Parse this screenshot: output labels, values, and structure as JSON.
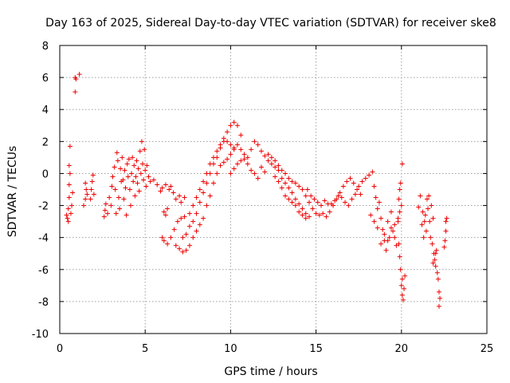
{
  "chart_data": {
    "type": "scatter",
    "title": "Day 163 of 2025, Sidereal Day-to-day VTEC variation (SDTVAR) for receiver ske8",
    "xlabel": "GPS time / hours",
    "ylabel": "SDTVAR / TECUs",
    "xlim": [
      0,
      25
    ],
    "ylim": [
      -10,
      8
    ],
    "xticks": [
      "0",
      "5",
      "10",
      "15",
      "20",
      "25"
    ],
    "yticks": [
      "-10",
      "-8",
      "-6",
      "-4",
      "-2",
      "0",
      "2",
      "4",
      "6",
      "8"
    ],
    "grid": true,
    "marker": "+",
    "color": "#ee0000",
    "series": [
      {
        "name": "SDTVAR",
        "points": [
          [
            0.4,
            -2.6
          ],
          [
            0.45,
            -2.8
          ],
          [
            0.5,
            -3.0
          ],
          [
            0.5,
            -2.2
          ],
          [
            0.55,
            -1.5
          ],
          [
            0.55,
            -0.7
          ],
          [
            0.6,
            0.0
          ],
          [
            0.55,
            0.5
          ],
          [
            0.6,
            1.7
          ],
          [
            0.65,
            -2.5
          ],
          [
            0.7,
            -2.0
          ],
          [
            0.75,
            -1.2
          ],
          [
            0.9,
            6.0
          ],
          [
            0.95,
            5.9
          ],
          [
            0.9,
            5.1
          ],
          [
            1.15,
            6.2
          ],
          [
            1.4,
            -2.0
          ],
          [
            1.5,
            -1.6
          ],
          [
            1.55,
            -1.0
          ],
          [
            1.5,
            -0.6
          ],
          [
            1.6,
            -1.3
          ],
          [
            1.8,
            -1.6
          ],
          [
            1.85,
            -1.0
          ],
          [
            1.9,
            -0.5
          ],
          [
            1.95,
            -0.1
          ],
          [
            2.0,
            -1.3
          ],
          [
            2.6,
            -2.7
          ],
          [
            2.65,
            -2.3
          ],
          [
            2.7,
            -1.9
          ],
          [
            2.8,
            -2.5
          ],
          [
            2.9,
            -1.5
          ],
          [
            3.0,
            -2.0
          ],
          [
            3.05,
            -0.8
          ],
          [
            3.1,
            -0.2
          ],
          [
            3.2,
            0.4
          ],
          [
            3.25,
            -1.0
          ],
          [
            3.3,
            -2.5
          ],
          [
            3.35,
            1.3
          ],
          [
            3.4,
            0.8
          ],
          [
            3.45,
            -1.5
          ],
          [
            3.5,
            -2.2
          ],
          [
            3.55,
            0.3
          ],
          [
            3.6,
            -0.5
          ],
          [
            3.65,
            1.0
          ],
          [
            3.7,
            -0.4
          ],
          [
            3.75,
            -1.6
          ],
          [
            3.8,
            0.2
          ],
          [
            3.85,
            -0.9
          ],
          [
            3.9,
            -2.6
          ],
          [
            3.95,
            0.6
          ],
          [
            4.0,
            -0.2
          ],
          [
            4.05,
            0.9
          ],
          [
            4.1,
            -1.0
          ],
          [
            4.15,
            -2.0
          ],
          [
            4.2,
            0.0
          ],
          [
            4.25,
            1.0
          ],
          [
            4.3,
            -0.5
          ],
          [
            4.35,
            0.5
          ],
          [
            4.4,
            -1.4
          ],
          [
            4.45,
            -0.2
          ],
          [
            4.5,
            0.8
          ],
          [
            4.55,
            -0.6
          ],
          [
            4.6,
            0.3
          ],
          [
            4.65,
            -1.1
          ],
          [
            4.7,
            1.4
          ],
          [
            4.75,
            0.0
          ],
          [
            4.8,
            2.0
          ],
          [
            4.85,
            0.6
          ],
          [
            4.9,
            -0.4
          ],
          [
            4.95,
            1.5
          ],
          [
            5.0,
            0.2
          ],
          [
            5.05,
            -0.8
          ],
          [
            5.1,
            0.5
          ],
          [
            5.2,
            -0.2
          ],
          [
            5.3,
            -0.5
          ],
          [
            5.5,
            -0.4
          ],
          [
            5.7,
            -0.7
          ],
          [
            5.9,
            -1.1
          ],
          [
            6.0,
            -0.9
          ],
          [
            6.2,
            -0.7
          ],
          [
            6.4,
            -1.0
          ],
          [
            6.5,
            -0.8
          ],
          [
            6.65,
            -1.2
          ],
          [
            6.8,
            -1.6
          ],
          [
            7.0,
            -1.4
          ],
          [
            7.1,
            -1.8
          ],
          [
            7.3,
            -1.5
          ],
          [
            6.1,
            -2.4
          ],
          [
            6.2,
            -2.6
          ],
          [
            6.3,
            -2.2
          ],
          [
            6.0,
            -4.0
          ],
          [
            6.1,
            -4.2
          ],
          [
            6.3,
            -4.4
          ],
          [
            6.5,
            -4.0
          ],
          [
            6.7,
            -3.5
          ],
          [
            6.9,
            -3.0
          ],
          [
            7.1,
            -2.8
          ],
          [
            7.3,
            -2.7
          ],
          [
            6.8,
            -4.5
          ],
          [
            7.0,
            -4.7
          ],
          [
            7.2,
            -4.9
          ],
          [
            7.4,
            -4.8
          ],
          [
            7.6,
            -4.5
          ],
          [
            7.8,
            -4.0
          ],
          [
            8.0,
            -3.6
          ],
          [
            8.2,
            -3.2
          ],
          [
            8.4,
            -2.8
          ],
          [
            8.6,
            -2.0
          ],
          [
            8.8,
            -1.4
          ],
          [
            9.0,
            -0.6
          ],
          [
            9.2,
            0.0
          ],
          [
            9.4,
            0.5
          ],
          [
            9.6,
            0.7
          ],
          [
            9.8,
            0.9
          ],
          [
            10.0,
            1.2
          ],
          [
            10.2,
            1.5
          ],
          [
            7.2,
            -4.0
          ],
          [
            7.4,
            -3.8
          ],
          [
            7.6,
            -3.3
          ],
          [
            7.8,
            -3.0
          ],
          [
            8.0,
            -2.5
          ],
          [
            8.2,
            -1.8
          ],
          [
            8.4,
            -1.2
          ],
          [
            8.6,
            -0.6
          ],
          [
            8.8,
            0.0
          ],
          [
            9.0,
            0.6
          ],
          [
            9.2,
            1.0
          ],
          [
            9.4,
            1.6
          ],
          [
            9.6,
            2.2
          ],
          [
            9.8,
            2.6
          ],
          [
            10.0,
            3.0
          ],
          [
            10.2,
            3.2
          ],
          [
            10.4,
            3.0
          ],
          [
            10.6,
            2.4
          ],
          [
            7.6,
            -2.5
          ],
          [
            7.8,
            -2.0
          ],
          [
            8.0,
            -1.5
          ],
          [
            8.2,
            -1.0
          ],
          [
            8.4,
            -0.5
          ],
          [
            8.6,
            0.0
          ],
          [
            8.8,
            0.6
          ],
          [
            9.0,
            1.0
          ],
          [
            9.2,
            1.4
          ],
          [
            9.4,
            1.8
          ],
          [
            9.6,
            2.0
          ],
          [
            9.8,
            2.0
          ],
          [
            10.0,
            1.8
          ],
          [
            10.2,
            1.6
          ],
          [
            10.4,
            1.8
          ],
          [
            10.6,
            1.5
          ],
          [
            10.8,
            1.2
          ],
          [
            11.0,
            0.6
          ],
          [
            10.0,
            0.0
          ],
          [
            10.2,
            0.3
          ],
          [
            10.4,
            0.6
          ],
          [
            10.6,
            0.8
          ],
          [
            10.8,
            0.9
          ],
          [
            11.0,
            1.0
          ],
          [
            11.2,
            1.5
          ],
          [
            11.4,
            2.0
          ],
          [
            11.6,
            1.8
          ],
          [
            11.8,
            1.4
          ],
          [
            12.0,
            1.1
          ],
          [
            12.2,
            0.8
          ],
          [
            12.4,
            0.6
          ],
          [
            12.6,
            0.4
          ],
          [
            12.8,
            0.2
          ],
          [
            13.0,
            -0.3
          ],
          [
            13.2,
            -0.6
          ],
          [
            13.4,
            -0.9
          ],
          [
            13.6,
            -1.2
          ],
          [
            13.8,
            -1.6
          ],
          [
            14.0,
            -1.9
          ],
          [
            14.2,
            -2.2
          ],
          [
            14.4,
            -2.5
          ],
          [
            14.6,
            -2.7
          ],
          [
            11.2,
            0.2
          ],
          [
            11.4,
            0.0
          ],
          [
            11.6,
            -0.3
          ],
          [
            11.8,
            0.4
          ],
          [
            12.0,
            0.1
          ],
          [
            12.2,
            1.2
          ],
          [
            12.4,
            1.0
          ],
          [
            12.6,
            0.8
          ],
          [
            12.8,
            0.5
          ],
          [
            13.0,
            0.2
          ],
          [
            13.2,
            0.0
          ],
          [
            13.4,
            -0.3
          ],
          [
            13.6,
            -0.5
          ],
          [
            13.8,
            -0.6
          ],
          [
            14.0,
            -0.8
          ],
          [
            14.2,
            -1.0
          ],
          [
            14.4,
            -1.4
          ],
          [
            14.6,
            -1.8
          ],
          [
            14.8,
            -2.2
          ],
          [
            15.0,
            -2.5
          ],
          [
            15.2,
            -2.6
          ],
          [
            15.4,
            -2.5
          ],
          [
            12.6,
            -0.2
          ],
          [
            12.8,
            -0.5
          ],
          [
            13.0,
            -0.9
          ],
          [
            13.2,
            -1.4
          ],
          [
            13.4,
            -1.6
          ],
          [
            13.6,
            -1.8
          ],
          [
            13.8,
            -2.0
          ],
          [
            14.0,
            -2.4
          ],
          [
            14.2,
            -2.6
          ],
          [
            14.4,
            -2.8
          ],
          [
            14.5,
            -1.0
          ],
          [
            14.7,
            -1.4
          ],
          [
            14.9,
            -1.6
          ],
          [
            15.1,
            -1.8
          ],
          [
            15.3,
            -2.0
          ],
          [
            15.6,
            -2.7
          ],
          [
            15.8,
            -2.4
          ],
          [
            16.0,
            -2.0
          ],
          [
            16.2,
            -1.6
          ],
          [
            16.4,
            -1.2
          ],
          [
            16.6,
            -0.8
          ],
          [
            16.8,
            -0.5
          ],
          [
            17.0,
            -0.3
          ],
          [
            17.2,
            -0.6
          ],
          [
            17.4,
            -1.0
          ],
          [
            17.6,
            -1.3
          ],
          [
            15.5,
            -1.7
          ],
          [
            15.7,
            -1.9
          ],
          [
            15.9,
            -1.9
          ],
          [
            16.1,
            -1.7
          ],
          [
            16.3,
            -1.4
          ],
          [
            16.5,
            -1.5
          ],
          [
            16.7,
            -1.8
          ],
          [
            16.9,
            -2.0
          ],
          [
            17.1,
            -1.6
          ],
          [
            17.3,
            -1.3
          ],
          [
            17.5,
            -0.8
          ],
          [
            17.7,
            -0.5
          ],
          [
            17.9,
            -0.3
          ],
          [
            18.1,
            -0.1
          ],
          [
            18.3,
            0.1
          ],
          [
            18.4,
            -0.8
          ],
          [
            18.5,
            -1.5
          ],
          [
            18.6,
            -2.2
          ],
          [
            18.7,
            -1.8
          ],
          [
            18.8,
            -2.8
          ],
          [
            18.9,
            -3.5
          ],
          [
            19.0,
            -4.2
          ],
          [
            19.1,
            -4.8
          ],
          [
            19.2,
            -3.0
          ],
          [
            19.3,
            -4.0
          ],
          [
            19.4,
            -2.4
          ],
          [
            19.5,
            -3.6
          ],
          [
            19.6,
            -3.2
          ],
          [
            19.7,
            -4.5
          ],
          [
            19.8,
            -2.8
          ],
          [
            18.2,
            -2.6
          ],
          [
            18.4,
            -3.0
          ],
          [
            18.6,
            -3.4
          ],
          [
            18.8,
            -4.4
          ],
          [
            19.0,
            -3.8
          ],
          [
            19.2,
            -4.2
          ],
          [
            19.4,
            -3.4
          ],
          [
            19.6,
            -4.0
          ],
          [
            19.8,
            -3.0
          ],
          [
            19.9,
            -2.4
          ],
          [
            20.0,
            -2.0
          ],
          [
            19.85,
            -4.4
          ],
          [
            19.9,
            -5.2
          ],
          [
            19.95,
            -6.0
          ],
          [
            20.0,
            -7.0
          ],
          [
            20.05,
            -7.6
          ],
          [
            20.1,
            -7.9
          ],
          [
            20.05,
            -6.6
          ],
          [
            20.15,
            -7.2
          ],
          [
            20.2,
            -6.4
          ],
          [
            19.9,
            -1.0
          ],
          [
            19.95,
            -0.6
          ],
          [
            20.05,
            0.6
          ],
          [
            19.85,
            -1.6
          ],
          [
            21.0,
            -2.1
          ],
          [
            21.1,
            -1.4
          ],
          [
            21.2,
            -3.2
          ],
          [
            21.25,
            -2.4
          ],
          [
            21.3,
            -4.0
          ],
          [
            21.35,
            -3.0
          ],
          [
            21.4,
            -2.6
          ],
          [
            21.45,
            -3.6
          ],
          [
            21.5,
            -1.6
          ],
          [
            21.55,
            -2.2
          ],
          [
            21.6,
            -1.4
          ],
          [
            21.65,
            -3.0
          ],
          [
            21.7,
            -4.0
          ],
          [
            21.75,
            -2.0
          ],
          [
            21.8,
            -4.4
          ],
          [
            21.85,
            -2.8
          ],
          [
            21.9,
            -5.0
          ],
          [
            21.95,
            -5.4
          ],
          [
            22.0,
            -5.8
          ],
          [
            22.05,
            -4.8
          ],
          [
            22.1,
            -6.2
          ],
          [
            22.15,
            -6.6
          ],
          [
            22.2,
            -7.4
          ],
          [
            22.25,
            -7.8
          ],
          [
            22.2,
            -8.3
          ],
          [
            22.0,
            -5.0
          ],
          [
            21.85,
            -5.6
          ],
          [
            22.5,
            -4.6
          ],
          [
            22.55,
            -4.2
          ],
          [
            22.6,
            -3.6
          ],
          [
            22.6,
            -3.0
          ],
          [
            22.65,
            -2.8
          ]
        ]
      }
    ]
  }
}
